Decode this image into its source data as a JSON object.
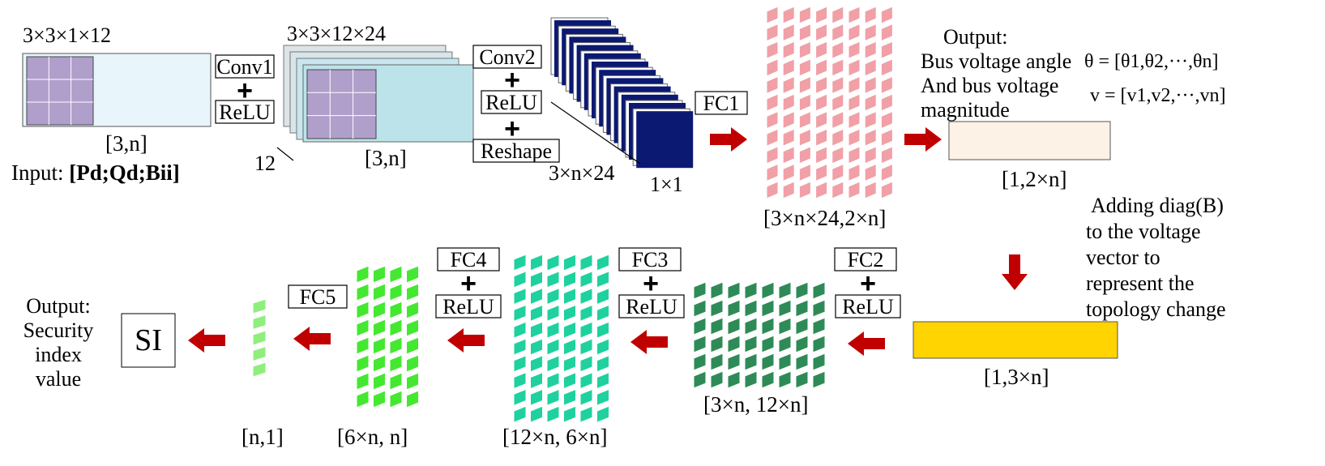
{
  "input_block": {
    "kernel_label": "3×3×1×12",
    "size_label": "[3,n]",
    "input_label_prefix": "Input: ",
    "input_label_vars": "[Pd;Qd;Bii]"
  },
  "conv1": {
    "op_label": "Conv1",
    "plus": "+",
    "act_label": "ReLU",
    "depth_label": "12"
  },
  "conv1_out": {
    "kernel_label": "3×3×12×24",
    "size_label": "[3,n]"
  },
  "conv2": {
    "op_label": "Conv2",
    "plus1": "+",
    "act_label": "ReLU",
    "plus2": "+",
    "reshape_label": "Reshape",
    "depth_label": "3×n×24",
    "unit_label": "1×1"
  },
  "fc1": {
    "label": "FC1",
    "weight_label": "[3×n×24,2×n]"
  },
  "output_voltage": {
    "line1": "Output:",
    "line2": "Bus voltage angle",
    "line3": "And bus voltage",
    "line4": "magnitude",
    "theta_eq": "θ = [θ1,θ2,···,θn]",
    "v_eq": "v = [v1,v2,···,vn]",
    "size_label": "[1,2×n]"
  },
  "topology_note": {
    "line1": "Adding diag(B)",
    "line2": "to the voltage",
    "line3": "vector to",
    "line4": "represent the",
    "line5": "topology change"
  },
  "augmented_vector": {
    "size_label": "[1,3×n]"
  },
  "fc2": {
    "label": "FC2",
    "plus": "+",
    "act_label": "ReLU",
    "weight_label": "[3×n, 12×n]"
  },
  "fc3": {
    "label": "FC3",
    "plus": "+",
    "act_label": "ReLU",
    "weight_label": "[12×n, 6×n]"
  },
  "fc4": {
    "label": "FC4",
    "plus": "+",
    "act_label": "ReLU",
    "weight_label": "[6×n, n]"
  },
  "fc5": {
    "label": "FC5",
    "weight_label": "[n,1]"
  },
  "output_si": {
    "box_label": "SI",
    "line1": "Output:",
    "line2": "Security",
    "line3": "index",
    "line4": "value"
  },
  "colors": {
    "input_fill": "#e8f6fb",
    "kernel_fill": "#b09fcb",
    "conv_out_fill": "#bde3ea",
    "conv_back_fill": "#dde3e6",
    "conv2_blue": "#0b1972",
    "fc1_pink": "#f0a0a6",
    "voltage_fill": "#fdf2e6",
    "augmented_fill": "#ffd400",
    "fc2_green": "#2e8b57",
    "fc3_teal": "#1fd19e",
    "fc4_green": "#44e830",
    "fc5_green": "#8fef7d",
    "arrow_red": "#c00000"
  }
}
